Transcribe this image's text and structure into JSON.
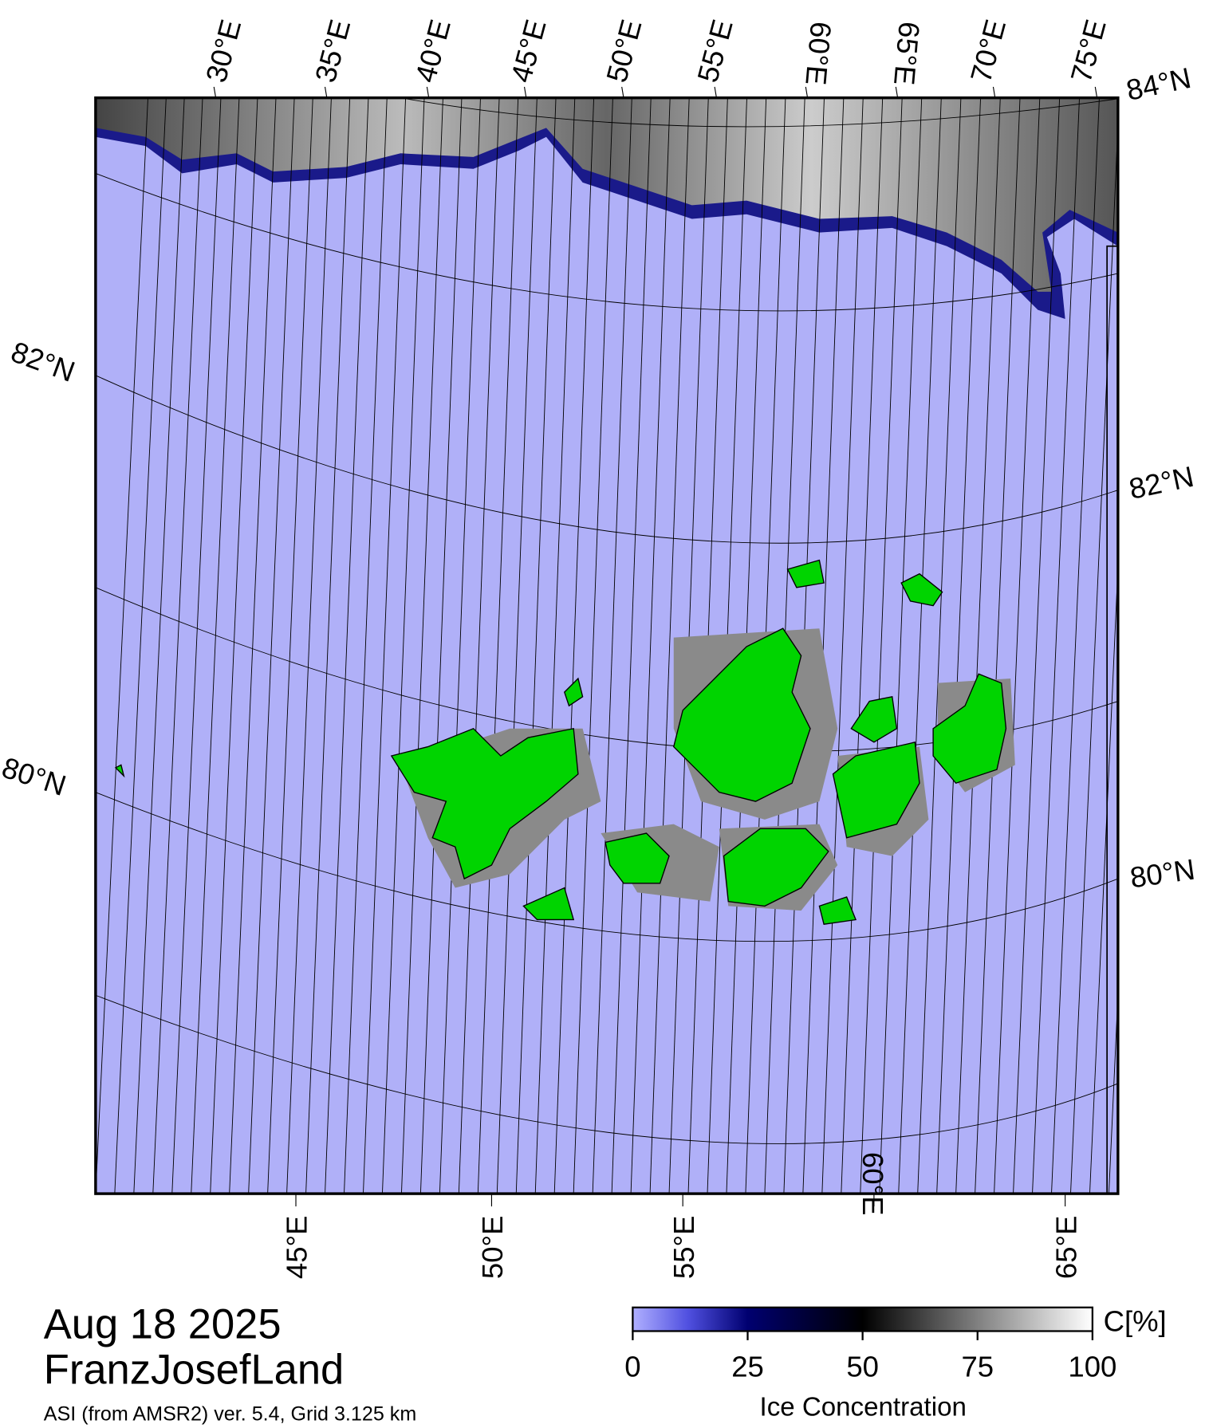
{
  "header": {
    "date": "Aug 18 2025",
    "region": "FranzJosefLand",
    "product": "ASI (from AMSR2) ver. 5.4,  Grid 3.125 km"
  },
  "map": {
    "top_longitude_labels": [
      "30°E",
      "35°E",
      "40°E",
      "45°E",
      "50°E",
      "55°E",
      "60°E",
      "65°E",
      "70°E",
      "75°E"
    ],
    "bottom_longitude_labels": [
      "45°E",
      "50°E",
      "55°E",
      "60°E",
      "65°E"
    ],
    "left_latitude_labels": [
      "82°N",
      "80°N"
    ],
    "right_latitude_labels": [
      "84°N",
      "82°N",
      "80°N"
    ]
  },
  "colorbar": {
    "unit": "C[%]",
    "label": "Ice Concentration",
    "lim": [
      0,
      100
    ],
    "ticks": [
      0,
      25,
      50,
      75,
      100
    ]
  }
}
